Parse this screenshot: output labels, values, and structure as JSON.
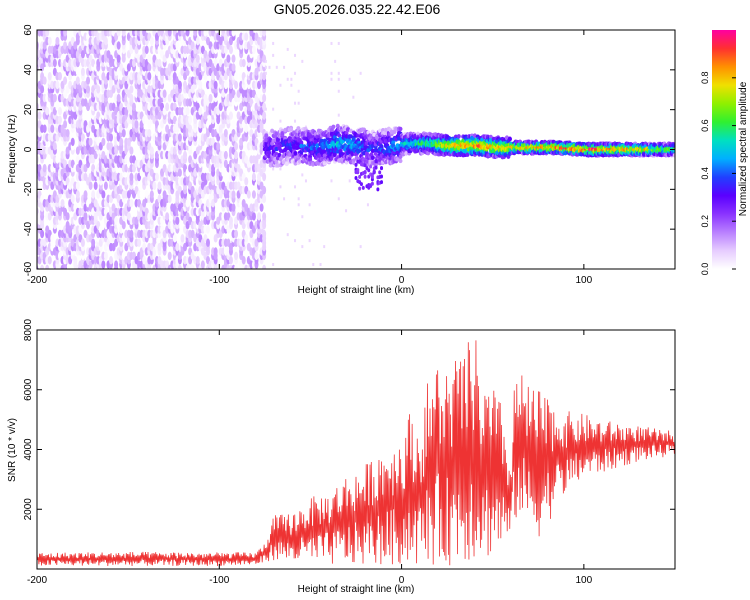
{
  "title": "GN05.2026.035.22.42.E06",
  "colors": {
    "snr_line": "#ee3333",
    "axes": "#000000",
    "colormap": [
      "#ffffff",
      "#e6ccff",
      "#b980ff",
      "#8a33ff",
      "#5a00ff",
      "#2040ff",
      "#00b0ff",
      "#00e0c0",
      "#30f030",
      "#90f000",
      "#f0e000",
      "#ff9000",
      "#ff3030",
      "#ff00a0"
    ]
  },
  "chart_data": [
    {
      "type": "heatmap",
      "title": "",
      "xlabel": "Height of straight line (km)",
      "ylabel": "Frequency (Hz)",
      "xlim": [
        -200,
        150
      ],
      "ylim": [
        -60,
        60
      ],
      "x_ticks": [
        -200,
        -100,
        0,
        100
      ],
      "x_tick_labels": [
        "-200",
        "-100",
        "0",
        "100"
      ],
      "y_ticks": [
        -60,
        -40,
        -20,
        0,
        20,
        40,
        60
      ],
      "y_tick_labels": [
        "-60",
        "-40",
        "-20",
        "0",
        "20",
        "40",
        "60"
      ],
      "colorbar": {
        "label": "Normalized spectral amplitude",
        "range": [
          0,
          1
        ],
        "ticks": [
          0.0,
          0.2,
          0.4,
          0.6,
          0.8
        ],
        "tick_labels": [
          "0.0",
          "0.2",
          "0.4",
          "0.6",
          "0.8"
        ]
      },
      "regions": [
        {
          "x_range": [
            -200,
            -75
          ],
          "description_value": "broadband noise",
          "freq_range": [
            -60,
            60
          ],
          "amplitude_range": [
            0.0,
            0.15
          ]
        },
        {
          "x_range": [
            -75,
            150
          ],
          "freq_range": [
            -5,
            5
          ],
          "amplitude_range": [
            0.2,
            0.95
          ]
        }
      ],
      "ridge": {
        "x": [
          -75,
          -60,
          -45,
          -35,
          -25,
          -15,
          -5,
          5,
          15,
          25,
          40,
          55,
          70,
          85,
          100,
          115,
          130,
          150
        ],
        "center_freq": [
          0,
          2,
          1,
          3,
          2,
          0,
          2,
          3,
          3,
          2,
          2,
          1,
          1,
          1,
          0,
          0,
          0,
          0
        ],
        "amplitude": [
          0.3,
          0.35,
          0.4,
          0.5,
          0.45,
          0.35,
          0.45,
          0.55,
          0.6,
          0.8,
          0.9,
          0.8,
          0.85,
          0.9,
          0.95,
          0.9,
          0.85,
          0.6
        ]
      }
    },
    {
      "type": "line",
      "title": "",
      "xlabel": "Height of straight line (km)",
      "ylabel": "SNR (10 * v/v)",
      "xlim": [
        -200,
        150
      ],
      "ylim": [
        0,
        8000
      ],
      "x_ticks": [
        -200,
        -100,
        0,
        100
      ],
      "x_tick_labels": [
        "-200",
        "-100",
        "0",
        "100"
      ],
      "y_ticks": [
        2000,
        4000,
        6000,
        8000
      ],
      "y_tick_labels": [
        "2000",
        "4000",
        "6000",
        "8000"
      ],
      "envelope": {
        "x": [
          -200,
          -150,
          -100,
          -80,
          -75,
          -70,
          -60,
          -50,
          -40,
          -30,
          -20,
          -10,
          0,
          5,
          10,
          15,
          20,
          25,
          30,
          35,
          40,
          45,
          50,
          55,
          60,
          62,
          65,
          70,
          75,
          80,
          90,
          100,
          110,
          120,
          130,
          140,
          150
        ],
        "max": [
          550,
          580,
          560,
          560,
          900,
          1800,
          1900,
          2400,
          2600,
          3200,
          3500,
          4200,
          4500,
          5400,
          4700,
          6600,
          7000,
          6800,
          7200,
          7400,
          8000,
          6200,
          6200,
          5500,
          3500,
          6500,
          6600,
          6200,
          6000,
          5800,
          5300,
          5200,
          5000,
          4900,
          4800,
          4700,
          4600
        ],
        "min": [
          100,
          100,
          100,
          120,
          200,
          300,
          200,
          150,
          120,
          100,
          100,
          100,
          100,
          100,
          100,
          100,
          100,
          100,
          150,
          200,
          250,
          300,
          400,
          600,
          900,
          1500,
          1800,
          1200,
          1000,
          1500,
          2500,
          3000,
          3200,
          3400,
          3600,
          3700,
          3800
        ]
      }
    }
  ]
}
